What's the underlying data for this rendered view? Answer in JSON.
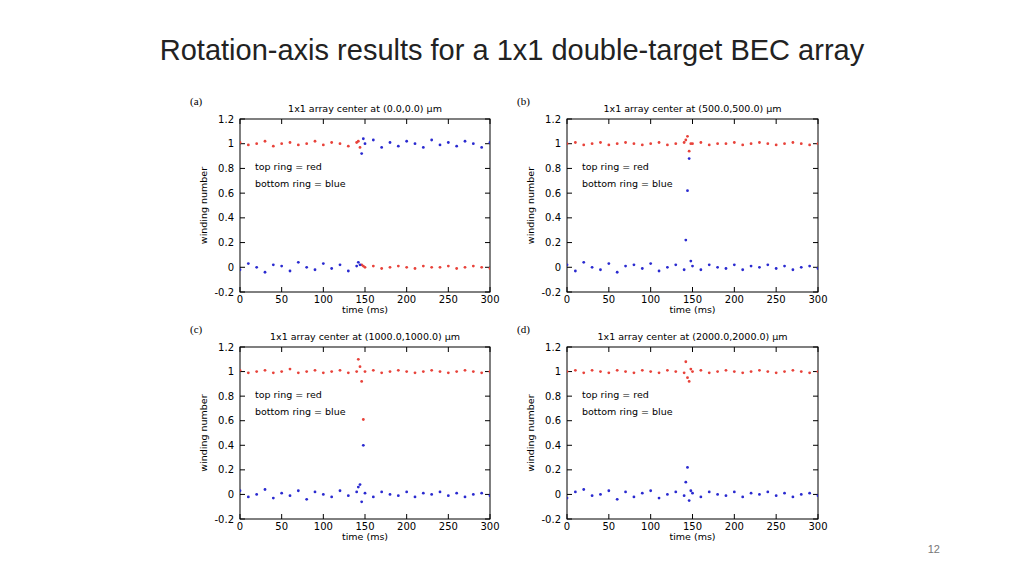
{
  "title": "Rotation-axis results for a 1x1 double-target BEC array",
  "page_number": 12,
  "chart_data": [
    {
      "type": "scatter",
      "title": "1x1 array center at (0.0,0.0) μm",
      "annotations": [
        "(a)",
        "top ring = red",
        "bottom ring = blue"
      ],
      "x_label": "time (ms)",
      "y_label": "winding number",
      "xlim": [
        0,
        300
      ],
      "xticks": [
        0,
        50,
        100,
        150,
        200,
        250,
        300
      ],
      "ylim": [
        -0.2,
        1.2
      ],
      "yticks": [
        -0.2,
        0,
        0.2,
        0.4,
        0.6,
        0.8,
        1,
        1.2
      ],
      "marker": "dot",
      "grid": false,
      "x": [
        0,
        10,
        20,
        30,
        40,
        50,
        60,
        70,
        80,
        90,
        100,
        110,
        120,
        130,
        140,
        142,
        144,
        146,
        148,
        150,
        160,
        170,
        180,
        190,
        200,
        210,
        220,
        230,
        240,
        250,
        260,
        270,
        280,
        290,
        300
      ],
      "series": [
        {
          "color": "#e8423a",
          "values": [
            1.01,
            0.99,
            1.0,
            1.02,
            0.98,
            1.0,
            1.01,
            0.99,
            1.0,
            1.02,
            0.99,
            1.01,
            1.0,
            0.98,
            1.01,
            1.02,
            0.97,
            0.02,
            0.01,
            0.0,
            0.01,
            -0.01,
            0.0,
            0.01,
            0.0,
            -0.01,
            0.01,
            0.0,
            0.0,
            0.01,
            -0.01,
            0.0,
            0.01,
            0.0,
            -0.01
          ]
        },
        {
          "color": "#2a2ad0",
          "values": [
            -0.02,
            0.03,
            0.0,
            -0.04,
            0.02,
            0.01,
            -0.03,
            0.04,
            0.0,
            -0.02,
            0.03,
            -0.01,
            0.02,
            -0.03,
            0.01,
            0.04,
            0.02,
            0.92,
            1.04,
            1.0,
            1.03,
            0.97,
            1.01,
            0.98,
            1.02,
            1.0,
            0.97,
            1.03,
            0.99,
            1.01,
            0.98,
            1.02,
            1.0,
            0.97,
            1.01
          ]
        }
      ]
    },
    {
      "type": "scatter",
      "title": "1x1 array center at (500.0,500.0) μm",
      "annotations": [
        "(b)",
        "top ring = red",
        "bottom ring = blue"
      ],
      "x_label": "time (ms)",
      "y_label": "winding number",
      "xlim": [
        0,
        300
      ],
      "xticks": [
        0,
        50,
        100,
        150,
        200,
        250,
        300
      ],
      "ylim": [
        -0.2,
        1.2
      ],
      "yticks": [
        -0.2,
        0,
        0.2,
        0.4,
        0.6,
        0.8,
        1,
        1.2
      ],
      "marker": "dot",
      "grid": false,
      "x": [
        0,
        10,
        20,
        30,
        40,
        50,
        60,
        70,
        80,
        90,
        100,
        110,
        120,
        130,
        140,
        142,
        144,
        146,
        148,
        150,
        160,
        170,
        180,
        190,
        200,
        210,
        220,
        230,
        240,
        250,
        260,
        270,
        280,
        290,
        300
      ],
      "series": [
        {
          "color": "#e8423a",
          "values": [
            1.0,
            1.01,
            0.99,
            1.0,
            1.01,
            0.99,
            1.0,
            1.01,
            1.0,
            0.99,
            1.0,
            1.01,
            0.99,
            1.0,
            1.01,
            1.03,
            1.06,
            0.94,
            1.0,
            1.0,
            1.01,
            0.99,
            1.0,
            1.0,
            1.01,
            0.99,
            1.0,
            1.01,
            1.0,
            0.99,
            1.0,
            1.01,
            1.0,
            0.99,
            1.0
          ]
        },
        {
          "color": "#2a2ad0",
          "values": [
            0.02,
            -0.03,
            0.04,
            0.0,
            -0.02,
            0.03,
            -0.04,
            0.01,
            0.02,
            -0.01,
            0.03,
            -0.03,
            0.0,
            0.02,
            -0.02,
            0.22,
            0.62,
            0.88,
            0.05,
            0.01,
            -0.02,
            0.02,
            0.0,
            -0.01,
            0.02,
            -0.02,
            0.01,
            0.0,
            0.02,
            -0.01,
            0.01,
            -0.02,
            0.0,
            0.01,
            -0.01
          ]
        }
      ]
    },
    {
      "type": "scatter",
      "title": "1x1 array center at (1000.0,1000.0) μm",
      "annotations": [
        "(c)",
        "top ring = red",
        "bottom ring = blue"
      ],
      "x_label": "time (ms)",
      "y_label": "winding number",
      "xlim": [
        0,
        300
      ],
      "xticks": [
        0,
        50,
        100,
        150,
        200,
        250,
        300
      ],
      "ylim": [
        -0.2,
        1.2
      ],
      "yticks": [
        -0.2,
        0,
        0.2,
        0.4,
        0.6,
        0.8,
        1,
        1.2
      ],
      "marker": "dot",
      "grid": false,
      "x": [
        0,
        10,
        20,
        30,
        40,
        50,
        60,
        70,
        80,
        90,
        100,
        110,
        120,
        130,
        140,
        142,
        144,
        146,
        148,
        150,
        160,
        170,
        180,
        190,
        200,
        210,
        220,
        230,
        240,
        250,
        260,
        270,
        280,
        290,
        300
      ],
      "series": [
        {
          "color": "#e8423a",
          "values": [
            1.01,
            0.99,
            1.0,
            1.01,
            0.99,
            1.0,
            1.02,
            0.99,
            1.0,
            1.01,
            0.99,
            1.0,
            1.01,
            0.99,
            1.0,
            1.1,
            1.04,
            0.92,
            0.61,
            1.0,
            1.01,
            0.99,
            1.0,
            1.01,
            1.0,
            0.99,
            1.0,
            1.01,
            1.0,
            0.99,
            1.0,
            1.01,
            1.0,
            0.99,
            1.0
          ]
        },
        {
          "color": "#2a2ad0",
          "values": [
            0.03,
            -0.02,
            0.0,
            0.04,
            -0.03,
            0.01,
            -0.01,
            0.03,
            -0.04,
            0.02,
            0.0,
            -0.02,
            0.03,
            -0.01,
            0.02,
            0.06,
            0.08,
            -0.06,
            0.4,
            0.01,
            -0.02,
            0.02,
            0.0,
            -0.01,
            0.02,
            -0.02,
            0.01,
            0.0,
            0.02,
            -0.01,
            0.01,
            -0.02,
            0.0,
            0.01,
            -0.01
          ]
        }
      ]
    },
    {
      "type": "scatter",
      "title": "1x1 array center at (2000.0,2000.0) μm",
      "annotations": [
        "(d)",
        "top ring = red",
        "bottom ring = blue"
      ],
      "x_label": "time (ms)",
      "y_label": "winding number",
      "xlim": [
        0,
        300
      ],
      "xticks": [
        0,
        50,
        100,
        150,
        200,
        250,
        300
      ],
      "ylim": [
        -0.2,
        1.2
      ],
      "yticks": [
        -0.2,
        0,
        0.2,
        0.4,
        0.6,
        0.8,
        1,
        1.2
      ],
      "marker": "dot",
      "grid": false,
      "x": [
        0,
        10,
        20,
        30,
        40,
        50,
        60,
        70,
        80,
        90,
        100,
        110,
        120,
        130,
        140,
        142,
        144,
        146,
        148,
        150,
        160,
        170,
        180,
        190,
        200,
        210,
        220,
        230,
        240,
        250,
        260,
        270,
        280,
        290,
        300
      ],
      "series": [
        {
          "color": "#e8423a",
          "values": [
            1.0,
            1.01,
            0.99,
            1.01,
            1.0,
            0.99,
            1.01,
            1.0,
            0.99,
            1.01,
            1.0,
            0.99,
            1.01,
            1.0,
            0.99,
            1.08,
            0.95,
            0.92,
            1.02,
            1.0,
            1.01,
            0.99,
            1.0,
            1.01,
            1.0,
            0.99,
            1.0,
            1.01,
            1.0,
            0.99,
            1.0,
            1.01,
            1.0,
            0.99,
            1.0
          ]
        },
        {
          "color": "#2a2ad0",
          "values": [
            -0.03,
            0.02,
            0.04,
            -0.01,
            0.0,
            0.03,
            -0.04,
            0.02,
            -0.02,
            0.01,
            0.03,
            -0.03,
            0.0,
            0.02,
            -0.01,
            0.1,
            0.22,
            -0.05,
            0.03,
            0.01,
            -0.02,
            0.02,
            0.0,
            -0.01,
            0.02,
            -0.02,
            0.01,
            0.0,
            0.02,
            -0.01,
            0.01,
            -0.02,
            0.0,
            0.01,
            -0.01
          ]
        }
      ]
    }
  ]
}
